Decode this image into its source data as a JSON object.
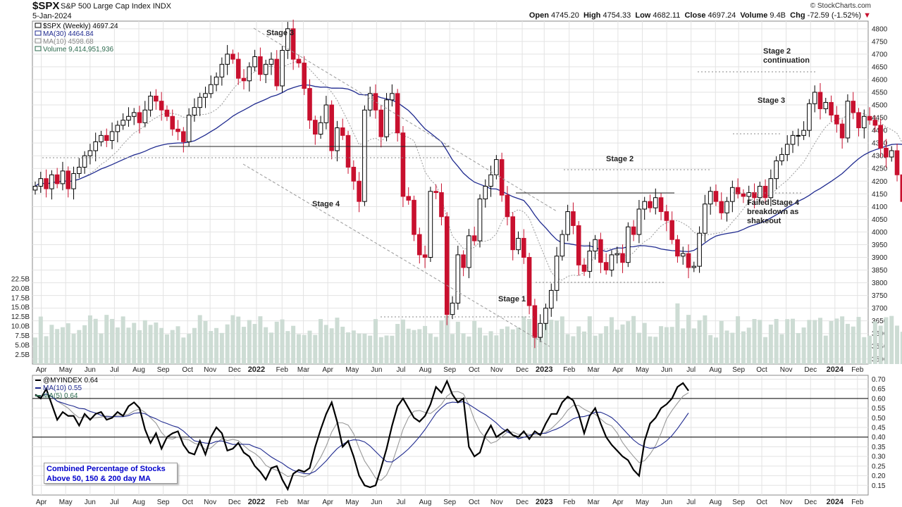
{
  "header": {
    "symbol": "$SPX",
    "name": "S&P 500 Large Cap Index",
    "exchange": "INDX",
    "date": "5-Jan-2024",
    "copyright": "© StockCharts.com",
    "open_label": "Open",
    "open": "4745.20",
    "high_label": "High",
    "high": "4754.33",
    "low_label": "Low",
    "low": "4682.11",
    "close_label": "Close",
    "close": "4697.24",
    "volume_label": "Volume",
    "volume": "9.4B",
    "chg_label": "Chg",
    "chg": "-72.59 (-1.52%)",
    "down_marker": "▼"
  },
  "legend_top": [
    {
      "text": "$SPX (Weekly) 4697.24",
      "color": "#000000"
    },
    {
      "text": "MA(30) 4464.84",
      "color": "#1f2a8f"
    },
    {
      "text": "MA(10) 4598.68",
      "color": "#888888"
    },
    {
      "text": "Volume 9,414,951,936",
      "color": "#2e6b4f"
    }
  ],
  "legend_bottom": [
    {
      "text": "@MYINDEX 0.64",
      "color": "#000000"
    },
    {
      "text": "MA(10) 0.55",
      "color": "#1f2a8f"
    },
    {
      "text": "MA(5) 0.64",
      "color": "#2e6b4f"
    }
  ],
  "note": "Combined Percentage of Stocks Above 50, 150 & 200 day MA",
  "annotations": [
    "Stage 3",
    "Stage 4",
    "Stage 1",
    "Stage 2",
    "Stage 2 continuation",
    "Stage 3",
    "Failed Stage 4 breakdown as shakeout"
  ],
  "colors": {
    "up": "#000000",
    "down": "#c8102e",
    "ma30": "#1f2a8f",
    "ma10": "#999999",
    "volume": "#cddcd4",
    "grid": "#e3e3e3"
  },
  "chart_data": [
    {
      "type": "candlestick",
      "title": "$SPX S&P 500 Large Cap Index (Weekly)",
      "x_tick_labels": [
        "Mar",
        "Apr",
        "May",
        "Jun",
        "Jul",
        "Aug",
        "Sep",
        "Oct",
        "Nov",
        "Dec",
        "2022",
        "Feb",
        "Mar",
        "Apr",
        "May",
        "Jun",
        "Jul",
        "Aug",
        "Sep",
        "Oct",
        "Nov",
        "Dec",
        "2023",
        "Feb",
        "Mar",
        "Apr",
        "May",
        "Jun",
        "Jul",
        "Aug",
        "Sep",
        "Oct",
        "Nov",
        "Dec",
        "2024",
        "Feb"
      ],
      "y_ticks": [
        3500,
        3550,
        3600,
        3650,
        3700,
        3750,
        3800,
        3850,
        3900,
        3950,
        4000,
        4050,
        4100,
        4150,
        4200,
        4250,
        4300,
        4350,
        4400,
        4450,
        4500,
        4550,
        4600,
        4650,
        4700,
        4750,
        4800
      ],
      "volume_ticks": [
        "2.5B",
        "5.0B",
        "7.5B",
        "10.0B",
        "12.5B",
        "15.0B",
        "17.5B",
        "20.0B",
        "22.5B"
      ],
      "ylim": [
        3480,
        4830
      ],
      "close": [
        4180,
        4210,
        4170,
        4225,
        4190,
        4240,
        4170,
        4230,
        4255,
        4300,
        4320,
        4355,
        4380,
        4360,
        4395,
        4420,
        4440,
        4455,
        4470,
        4430,
        4480,
        4535,
        4515,
        4480,
        4455,
        4405,
        4395,
        4355,
        4460,
        4490,
        4530,
        4545,
        4580,
        4610,
        4660,
        4700,
        4680,
        4605,
        4595,
        4650,
        4690,
        4620,
        4660,
        4680,
        4575,
        4715,
        4800,
        4680,
        4665,
        4565,
        4440,
        4385,
        4430,
        4500,
        4320,
        4410,
        4380,
        4255,
        4200,
        4120,
        4480,
        4545,
        4480,
        4375,
        4520,
        4545,
        4390,
        4140,
        4125,
        3990,
        3910,
        3900,
        4160,
        4155,
        4060,
        3675,
        3720,
        3910,
        3860,
        3985,
        3965,
        4130,
        4180,
        4225,
        4285,
        4145,
        4060,
        3930,
        3975,
        3900,
        3710,
        3585,
        3640,
        3700,
        3770,
        3905,
        3990,
        4080,
        4025,
        3870,
        3845,
        3925,
        3970,
        3880,
        3850,
        3910,
        3915,
        3880,
        4020,
        3990,
        4090,
        4120,
        4095,
        4135,
        4080,
        4045,
        3970,
        3905,
        3915,
        3860,
        3865,
        3995,
        4110,
        4160,
        4120,
        4075,
        4120,
        4175,
        4150,
        4140,
        4155,
        4135,
        4180,
        4135,
        4210,
        4280,
        4305,
        4345,
        4380,
        4380,
        4400,
        4505,
        4550,
        4485,
        4510,
        4460,
        4425,
        4370,
        4515,
        4470,
        4410,
        4455,
        4440,
        4420,
        4330,
        4295,
        4320,
        4225,
        4120,
        4160,
        4360,
        4420,
        4440,
        4465,
        4545,
        4585,
        4610,
        4750,
        4720,
        4810,
        4770,
        4697
      ]
    },
    {
      "type": "line",
      "title": "@MYINDEX",
      "ylim": [
        0.1,
        0.72
      ],
      "y_ticks": [
        0.15,
        0.2,
        0.25,
        0.3,
        0.35,
        0.4,
        0.45,
        0.5,
        0.55,
        0.6,
        0.65,
        0.7
      ],
      "reference_lines": [
        0.4,
        0.6
      ],
      "values": [
        0.62,
        0.6,
        0.65,
        0.57,
        0.49,
        0.53,
        0.51,
        0.51,
        0.46,
        0.52,
        0.49,
        0.52,
        0.53,
        0.49,
        0.5,
        0.53,
        0.51,
        0.56,
        0.58,
        0.55,
        0.44,
        0.37,
        0.42,
        0.34,
        0.4,
        0.42,
        0.43,
        0.36,
        0.32,
        0.31,
        0.38,
        0.31,
        0.4,
        0.45,
        0.42,
        0.33,
        0.34,
        0.37,
        0.32,
        0.3,
        0.25,
        0.22,
        0.18,
        0.24,
        0.25,
        0.18,
        0.13,
        0.21,
        0.23,
        0.22,
        0.24,
        0.35,
        0.44,
        0.52,
        0.58,
        0.48,
        0.35,
        0.38,
        0.3,
        0.2,
        0.15,
        0.14,
        0.15,
        0.24,
        0.34,
        0.46,
        0.56,
        0.6,
        0.55,
        0.5,
        0.48,
        0.51,
        0.57,
        0.66,
        0.63,
        0.69,
        0.62,
        0.58,
        0.6,
        0.35,
        0.3,
        0.32,
        0.41,
        0.46,
        0.4,
        0.42,
        0.44,
        0.41,
        0.4,
        0.43,
        0.39,
        0.43,
        0.41,
        0.47,
        0.52,
        0.52,
        0.58,
        0.61,
        0.59,
        0.52,
        0.42,
        0.51,
        0.55,
        0.47,
        0.4,
        0.36,
        0.33,
        0.3,
        0.28,
        0.23,
        0.2,
        0.38,
        0.47,
        0.5,
        0.55,
        0.57,
        0.6,
        0.66,
        0.68,
        0.64
      ]
    }
  ]
}
